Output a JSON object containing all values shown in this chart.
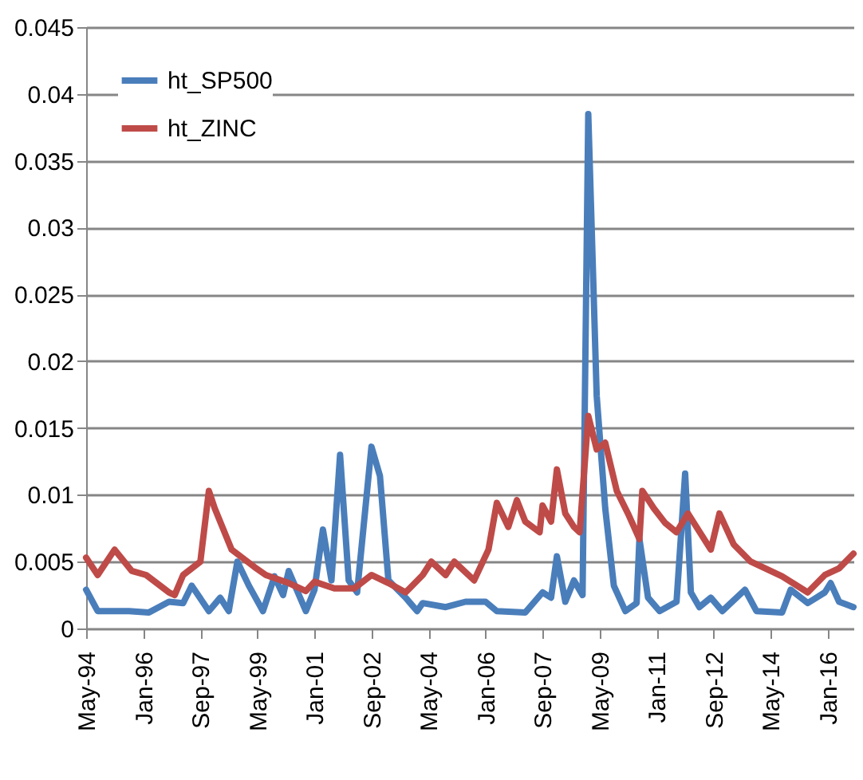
{
  "chart_data": {
    "type": "line",
    "xlim": [
      "1994-05",
      "2016-10"
    ],
    "xticks": [
      {
        "value": "1994-05",
        "label": "May-94"
      },
      {
        "value": "1996-01",
        "label": "Jan-96"
      },
      {
        "value": "1997-09",
        "label": "Sep-97"
      },
      {
        "value": "1999-05",
        "label": "May-99"
      },
      {
        "value": "2001-01",
        "label": "Jan-01"
      },
      {
        "value": "2002-09",
        "label": "Sep-02"
      },
      {
        "value": "2004-05",
        "label": "May-04"
      },
      {
        "value": "2006-01",
        "label": "Jan-06"
      },
      {
        "value": "2007-09",
        "label": "Sep-07"
      },
      {
        "value": "2009-05",
        "label": "May-09"
      },
      {
        "value": "2011-01",
        "label": "Jan-11"
      },
      {
        "value": "2012-09",
        "label": "Sep-12"
      },
      {
        "value": "2014-05",
        "label": "May-14"
      },
      {
        "value": "2016-01",
        "label": "Jan-16"
      }
    ],
    "ylim": [
      0,
      0.045
    ],
    "yticks": [
      0,
      0.005,
      0.01,
      0.015,
      0.02,
      0.025,
      0.03,
      0.035,
      0.04,
      0.045
    ],
    "grid": "y",
    "legend": "top left",
    "marker": "none",
    "line_style": "solid",
    "series": [
      {
        "name": "ht_SP500",
        "color": "#4a7ebb",
        "x": [
          "1994-05",
          "1994-09",
          "1995-08",
          "1996-03",
          "1996-10",
          "1997-03",
          "1997-06",
          "1997-12",
          "1998-04",
          "1998-07",
          "1998-10",
          "1999-02",
          "1999-07",
          "1999-11",
          "2000-02",
          "2000-04",
          "2000-10",
          "2001-01",
          "2001-04",
          "2001-07",
          "2001-10",
          "2002-01",
          "2002-04",
          "2002-09",
          "2002-12",
          "2003-03",
          "2003-09",
          "2004-01",
          "2004-03",
          "2004-11",
          "2005-06",
          "2006-01",
          "2006-05",
          "2007-03",
          "2007-09",
          "2007-12",
          "2008-02",
          "2008-05",
          "2008-08",
          "2008-11",
          "2009-01",
          "2009-04",
          "2009-07",
          "2009-10",
          "2010-02",
          "2010-06",
          "2010-07",
          "2010-10",
          "2011-02",
          "2011-08",
          "2011-11",
          "2012-01",
          "2012-04",
          "2012-08",
          "2012-12",
          "2013-08",
          "2013-12",
          "2014-09",
          "2014-12",
          "2015-06",
          "2015-12",
          "2016-02",
          "2016-05",
          "2016-10"
        ],
        "values": [
          0.0029,
          0.0013,
          0.0013,
          0.0012,
          0.002,
          0.0019,
          0.0032,
          0.0013,
          0.0023,
          0.0013,
          0.005,
          0.0032,
          0.0013,
          0.0039,
          0.0025,
          0.0043,
          0.0013,
          0.0029,
          0.0074,
          0.0036,
          0.013,
          0.0036,
          0.0027,
          0.0136,
          0.0114,
          0.0036,
          0.0023,
          0.0013,
          0.0019,
          0.0016,
          0.002,
          0.002,
          0.0013,
          0.0012,
          0.0027,
          0.0023,
          0.0054,
          0.002,
          0.0036,
          0.0025,
          0.0385,
          0.0174,
          0.009,
          0.0032,
          0.0013,
          0.0019,
          0.0067,
          0.0023,
          0.0013,
          0.002,
          0.0116,
          0.0027,
          0.0016,
          0.0023,
          0.0013,
          0.0029,
          0.0013,
          0.0012,
          0.0029,
          0.0019,
          0.0027,
          0.0034,
          0.002,
          0.0016
        ]
      },
      {
        "name": "ht_ZINC",
        "color": "#be4b48",
        "x": [
          "1994-05",
          "1994-09",
          "1995-03",
          "1995-09",
          "1996-02",
          "1996-10",
          "1996-12",
          "1997-03",
          "1997-09",
          "1997-12",
          "1998-02",
          "1998-08",
          "1999-04",
          "1999-08",
          "2000-04",
          "2000-10",
          "2001-01",
          "2001-08",
          "2002-03",
          "2002-09",
          "2003-03",
          "2003-09",
          "2004-03",
          "2004-06",
          "2004-11",
          "2005-02",
          "2005-09",
          "2006-02",
          "2006-05",
          "2006-09",
          "2006-12",
          "2007-03",
          "2007-08",
          "2007-09",
          "2007-12",
          "2008-02",
          "2008-05",
          "2008-08",
          "2008-10",
          "2009-01",
          "2009-04",
          "2009-07",
          "2009-11",
          "2010-03",
          "2010-07",
          "2010-08",
          "2010-12",
          "2011-04",
          "2011-08",
          "2011-12",
          "2012-08",
          "2012-11",
          "2013-04",
          "2013-10",
          "2014-09",
          "2015-06",
          "2015-12",
          "2016-05",
          "2016-10"
        ],
        "values": [
          0.0053,
          0.004,
          0.0059,
          0.0043,
          0.004,
          0.0027,
          0.0025,
          0.004,
          0.005,
          0.0103,
          0.009,
          0.0059,
          0.0046,
          0.004,
          0.0034,
          0.0028,
          0.0035,
          0.003,
          0.003,
          0.004,
          0.0034,
          0.0027,
          0.004,
          0.005,
          0.004,
          0.005,
          0.0036,
          0.0059,
          0.0094,
          0.0076,
          0.0096,
          0.008,
          0.0072,
          0.0092,
          0.008,
          0.0119,
          0.0086,
          0.0076,
          0.0072,
          0.0159,
          0.0134,
          0.0139,
          0.0103,
          0.0086,
          0.0067,
          0.0103,
          0.009,
          0.0079,
          0.0072,
          0.0086,
          0.0059,
          0.0086,
          0.0063,
          0.005,
          0.0039,
          0.0027,
          0.004,
          0.0045,
          0.0056
        ]
      }
    ]
  }
}
